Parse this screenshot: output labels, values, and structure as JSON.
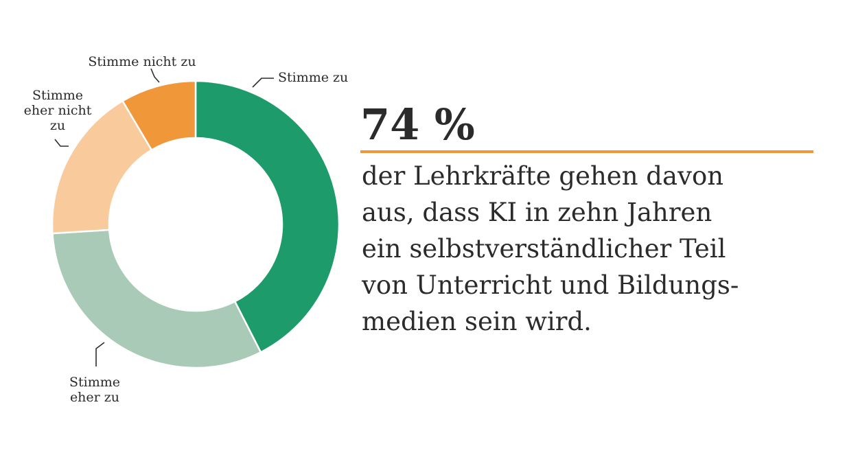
{
  "chart_data": {
    "type": "pie",
    "categories": [
      "Stimme zu",
      "Stimme eher zu",
      "Stimme eher nicht zu",
      "Stimme nicht zu"
    ],
    "label_lines": [
      [
        "Stimme zu"
      ],
      [
        "Stimme",
        "eher zu"
      ],
      [
        "Stimme",
        "eher nicht",
        "zu"
      ],
      [
        "Stimme nicht zu"
      ]
    ],
    "values": [
      42.5,
      31.5,
      17.5,
      8.5
    ],
    "colors": [
      "#1e9b6b",
      "#a8cab6",
      "#f9cb9c",
      "#f0973a"
    ],
    "donut": true
  },
  "stat": {
    "value": "74 %",
    "lines": [
      "der Lehrkräfte gehen davon",
      "aus, dass KI in zehn Jahren",
      "ein selbstverständlicher Teil",
      "von Unterricht und Bildungs-",
      "medien sein wird."
    ],
    "accent_color": "#f0973a"
  }
}
